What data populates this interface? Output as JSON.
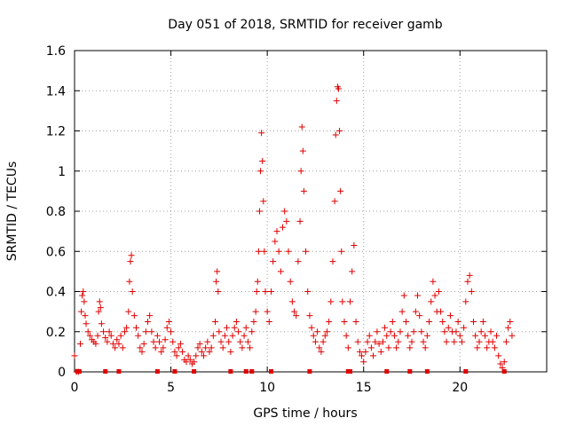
{
  "chart_data": {
    "type": "scatter",
    "title": "Day 051 of 2018, SRMTID for receiver gamb",
    "xlabel": "GPS time / hours",
    "ylabel": "SRMTID / TECUs",
    "xlim": [
      0,
      24.5
    ],
    "ylim": [
      0,
      1.6
    ],
    "xticks": [
      0,
      5,
      10,
      15,
      20
    ],
    "xtick_labels": [
      "0",
      "5",
      "10",
      "15",
      "20"
    ],
    "yticks": [
      0,
      0.2,
      0.4,
      0.6,
      0.8,
      1.0,
      1.2,
      1.4,
      1.6
    ],
    "ytick_labels": [
      "0",
      "0.2",
      "0.4",
      "0.6",
      "0.8",
      "1",
      "1.2",
      "1.4",
      "1.6"
    ],
    "grid": true,
    "marker": "+",
    "colors": {
      "series": "#e00000",
      "grid": "#a0a0a0",
      "axis": "#000000"
    },
    "series": [
      {
        "name": "SRMTID",
        "points": [
          [
            0.0,
            0.08
          ],
          [
            0.1,
            0.0
          ],
          [
            0.2,
            0.0
          ],
          [
            0.3,
            0.14
          ],
          [
            0.35,
            0.3
          ],
          [
            0.4,
            0.38
          ],
          [
            0.45,
            0.4
          ],
          [
            0.5,
            0.35
          ],
          [
            0.55,
            0.28
          ],
          [
            0.6,
            0.24
          ],
          [
            0.7,
            0.2
          ],
          [
            0.8,
            0.18
          ],
          [
            0.9,
            0.16
          ],
          [
            1.0,
            0.15
          ],
          [
            1.1,
            0.14
          ],
          [
            1.2,
            0.18
          ],
          [
            1.25,
            0.3
          ],
          [
            1.3,
            0.35
          ],
          [
            1.35,
            0.32
          ],
          [
            1.4,
            0.24
          ],
          [
            1.5,
            0.2
          ],
          [
            1.6,
            0.17
          ],
          [
            1.7,
            0.15
          ],
          [
            1.8,
            0.2
          ],
          [
            1.9,
            0.18
          ],
          [
            2.0,
            0.14
          ],
          [
            2.1,
            0.12
          ],
          [
            2.2,
            0.16
          ],
          [
            2.3,
            0.14
          ],
          [
            2.4,
            0.18
          ],
          [
            2.5,
            0.12
          ],
          [
            2.6,
            0.2
          ],
          [
            2.7,
            0.22
          ],
          [
            2.8,
            0.3
          ],
          [
            2.85,
            0.45
          ],
          [
            2.9,
            0.55
          ],
          [
            2.95,
            0.58
          ],
          [
            3.0,
            0.4
          ],
          [
            3.1,
            0.28
          ],
          [
            3.2,
            0.22
          ],
          [
            3.3,
            0.18
          ],
          [
            3.4,
            0.12
          ],
          [
            3.5,
            0.1
          ],
          [
            3.6,
            0.14
          ],
          [
            3.7,
            0.2
          ],
          [
            3.8,
            0.25
          ],
          [
            3.9,
            0.28
          ],
          [
            4.0,
            0.2
          ],
          [
            4.1,
            0.15
          ],
          [
            4.2,
            0.12
          ],
          [
            4.3,
            0.18
          ],
          [
            4.4,
            0.15
          ],
          [
            4.5,
            0.1
          ],
          [
            4.6,
            0.12
          ],
          [
            4.7,
            0.16
          ],
          [
            4.8,
            0.22
          ],
          [
            4.9,
            0.25
          ],
          [
            5.0,
            0.2
          ],
          [
            5.1,
            0.15
          ],
          [
            5.2,
            0.1
          ],
          [
            5.3,
            0.08
          ],
          [
            5.4,
            0.12
          ],
          [
            5.5,
            0.14
          ],
          [
            5.6,
            0.1
          ],
          [
            5.7,
            0.06
          ],
          [
            5.8,
            0.05
          ],
          [
            5.9,
            0.08
          ],
          [
            6.0,
            0.06
          ],
          [
            6.1,
            0.04
          ],
          [
            6.2,
            0.05
          ],
          [
            6.3,
            0.08
          ],
          [
            6.4,
            0.12
          ],
          [
            6.5,
            0.14
          ],
          [
            6.6,
            0.1
          ],
          [
            6.7,
            0.08
          ],
          [
            6.8,
            0.12
          ],
          [
            6.9,
            0.15
          ],
          [
            7.0,
            0.1
          ],
          [
            7.1,
            0.12
          ],
          [
            7.2,
            0.18
          ],
          [
            7.3,
            0.25
          ],
          [
            7.35,
            0.45
          ],
          [
            7.4,
            0.5
          ],
          [
            7.45,
            0.4
          ],
          [
            7.5,
            0.2
          ],
          [
            7.6,
            0.15
          ],
          [
            7.7,
            0.12
          ],
          [
            7.8,
            0.18
          ],
          [
            7.9,
            0.22
          ],
          [
            8.0,
            0.15
          ],
          [
            8.1,
            0.1
          ],
          [
            8.2,
            0.18
          ],
          [
            8.3,
            0.22
          ],
          [
            8.4,
            0.25
          ],
          [
            8.5,
            0.2
          ],
          [
            8.6,
            0.15
          ],
          [
            8.7,
            0.12
          ],
          [
            8.8,
            0.18
          ],
          [
            8.9,
            0.22
          ],
          [
            9.0,
            0.15
          ],
          [
            9.1,
            0.12
          ],
          [
            9.2,
            0.2
          ],
          [
            9.3,
            0.25
          ],
          [
            9.4,
            0.3
          ],
          [
            9.45,
            0.4
          ],
          [
            9.5,
            0.45
          ],
          [
            9.55,
            0.6
          ],
          [
            9.6,
            0.8
          ],
          [
            9.65,
            1.0
          ],
          [
            9.7,
            1.19
          ],
          [
            9.75,
            1.05
          ],
          [
            9.8,
            0.85
          ],
          [
            9.85,
            0.6
          ],
          [
            9.9,
            0.4
          ],
          [
            10.0,
            0.3
          ],
          [
            10.1,
            0.25
          ],
          [
            10.2,
            0.4
          ],
          [
            10.3,
            0.55
          ],
          [
            10.4,
            0.65
          ],
          [
            10.5,
            0.7
          ],
          [
            10.6,
            0.6
          ],
          [
            10.7,
            0.5
          ],
          [
            10.8,
            0.72
          ],
          [
            10.9,
            0.8
          ],
          [
            11.0,
            0.75
          ],
          [
            11.1,
            0.6
          ],
          [
            11.2,
            0.45
          ],
          [
            11.3,
            0.35
          ],
          [
            11.4,
            0.3
          ],
          [
            11.5,
            0.28
          ],
          [
            11.6,
            0.55
          ],
          [
            11.7,
            0.75
          ],
          [
            11.75,
            1.0
          ],
          [
            11.8,
            1.22
          ],
          [
            11.85,
            1.1
          ],
          [
            11.9,
            0.9
          ],
          [
            12.0,
            0.6
          ],
          [
            12.1,
            0.4
          ],
          [
            12.2,
            0.28
          ],
          [
            12.3,
            0.22
          ],
          [
            12.4,
            0.18
          ],
          [
            12.5,
            0.15
          ],
          [
            12.6,
            0.2
          ],
          [
            12.7,
            0.12
          ],
          [
            12.8,
            0.1
          ],
          [
            12.9,
            0.15
          ],
          [
            13.0,
            0.18
          ],
          [
            13.1,
            0.2
          ],
          [
            13.2,
            0.25
          ],
          [
            13.3,
            0.35
          ],
          [
            13.4,
            0.55
          ],
          [
            13.5,
            0.85
          ],
          [
            13.55,
            1.18
          ],
          [
            13.6,
            1.35
          ],
          [
            13.65,
            1.42
          ],
          [
            13.7,
            1.41
          ],
          [
            13.75,
            1.2
          ],
          [
            13.8,
            0.9
          ],
          [
            13.85,
            0.6
          ],
          [
            13.9,
            0.35
          ],
          [
            14.0,
            0.25
          ],
          [
            14.1,
            0.18
          ],
          [
            14.2,
            0.12
          ],
          [
            14.3,
            0.35
          ],
          [
            14.4,
            0.5
          ],
          [
            14.5,
            0.63
          ],
          [
            14.6,
            0.25
          ],
          [
            14.7,
            0.15
          ],
          [
            14.8,
            0.1
          ],
          [
            14.9,
            0.08
          ],
          [
            15.0,
            0.05
          ],
          [
            15.1,
            0.1
          ],
          [
            15.2,
            0.15
          ],
          [
            15.3,
            0.18
          ],
          [
            15.4,
            0.12
          ],
          [
            15.5,
            0.08
          ],
          [
            15.6,
            0.15
          ],
          [
            15.7,
            0.2
          ],
          [
            15.8,
            0.14
          ],
          [
            15.9,
            0.1
          ],
          [
            16.0,
            0.15
          ],
          [
            16.1,
            0.22
          ],
          [
            16.2,
            0.18
          ],
          [
            16.3,
            0.12
          ],
          [
            16.4,
            0.2
          ],
          [
            16.5,
            0.25
          ],
          [
            16.6,
            0.18
          ],
          [
            16.7,
            0.12
          ],
          [
            16.8,
            0.15
          ],
          [
            16.9,
            0.2
          ],
          [
            17.0,
            0.3
          ],
          [
            17.1,
            0.38
          ],
          [
            17.2,
            0.25
          ],
          [
            17.3,
            0.18
          ],
          [
            17.4,
            0.12
          ],
          [
            17.5,
            0.15
          ],
          [
            17.6,
            0.2
          ],
          [
            17.7,
            0.3
          ],
          [
            17.8,
            0.38
          ],
          [
            17.9,
            0.28
          ],
          [
            18.0,
            0.2
          ],
          [
            18.1,
            0.15
          ],
          [
            18.2,
            0.12
          ],
          [
            18.3,
            0.18
          ],
          [
            18.4,
            0.25
          ],
          [
            18.5,
            0.35
          ],
          [
            18.6,
            0.45
          ],
          [
            18.7,
            0.38
          ],
          [
            18.8,
            0.3
          ],
          [
            18.9,
            0.4
          ],
          [
            19.0,
            0.3
          ],
          [
            19.1,
            0.25
          ],
          [
            19.2,
            0.2
          ],
          [
            19.3,
            0.15
          ],
          [
            19.4,
            0.22
          ],
          [
            19.5,
            0.28
          ],
          [
            19.6,
            0.2
          ],
          [
            19.7,
            0.15
          ],
          [
            19.8,
            0.2
          ],
          [
            19.9,
            0.25
          ],
          [
            20.0,
            0.18
          ],
          [
            20.1,
            0.15
          ],
          [
            20.2,
            0.22
          ],
          [
            20.3,
            0.35
          ],
          [
            20.4,
            0.45
          ],
          [
            20.5,
            0.48
          ],
          [
            20.6,
            0.4
          ],
          [
            20.7,
            0.25
          ],
          [
            20.8,
            0.18
          ],
          [
            20.9,
            0.12
          ],
          [
            21.0,
            0.15
          ],
          [
            21.1,
            0.2
          ],
          [
            21.2,
            0.25
          ],
          [
            21.3,
            0.18
          ],
          [
            21.4,
            0.12
          ],
          [
            21.5,
            0.15
          ],
          [
            21.6,
            0.2
          ],
          [
            21.7,
            0.15
          ],
          [
            21.8,
            0.12
          ],
          [
            21.9,
            0.18
          ],
          [
            22.0,
            0.08
          ],
          [
            22.1,
            0.04
          ],
          [
            22.2,
            0.02
          ],
          [
            22.3,
            0.05
          ],
          [
            22.4,
            0.15
          ],
          [
            22.5,
            0.22
          ],
          [
            22.6,
            0.25
          ],
          [
            22.7,
            0.18
          ]
        ]
      }
    ],
    "zero_markers_x": [
      0.15,
      0.25,
      1.6,
      2.3,
      4.3,
      5.2,
      6.2,
      8.1,
      8.9,
      9.2,
      10.2,
      12.2,
      14.2,
      14.3,
      16.2,
      17.4,
      18.3,
      20.3,
      22.3
    ]
  }
}
